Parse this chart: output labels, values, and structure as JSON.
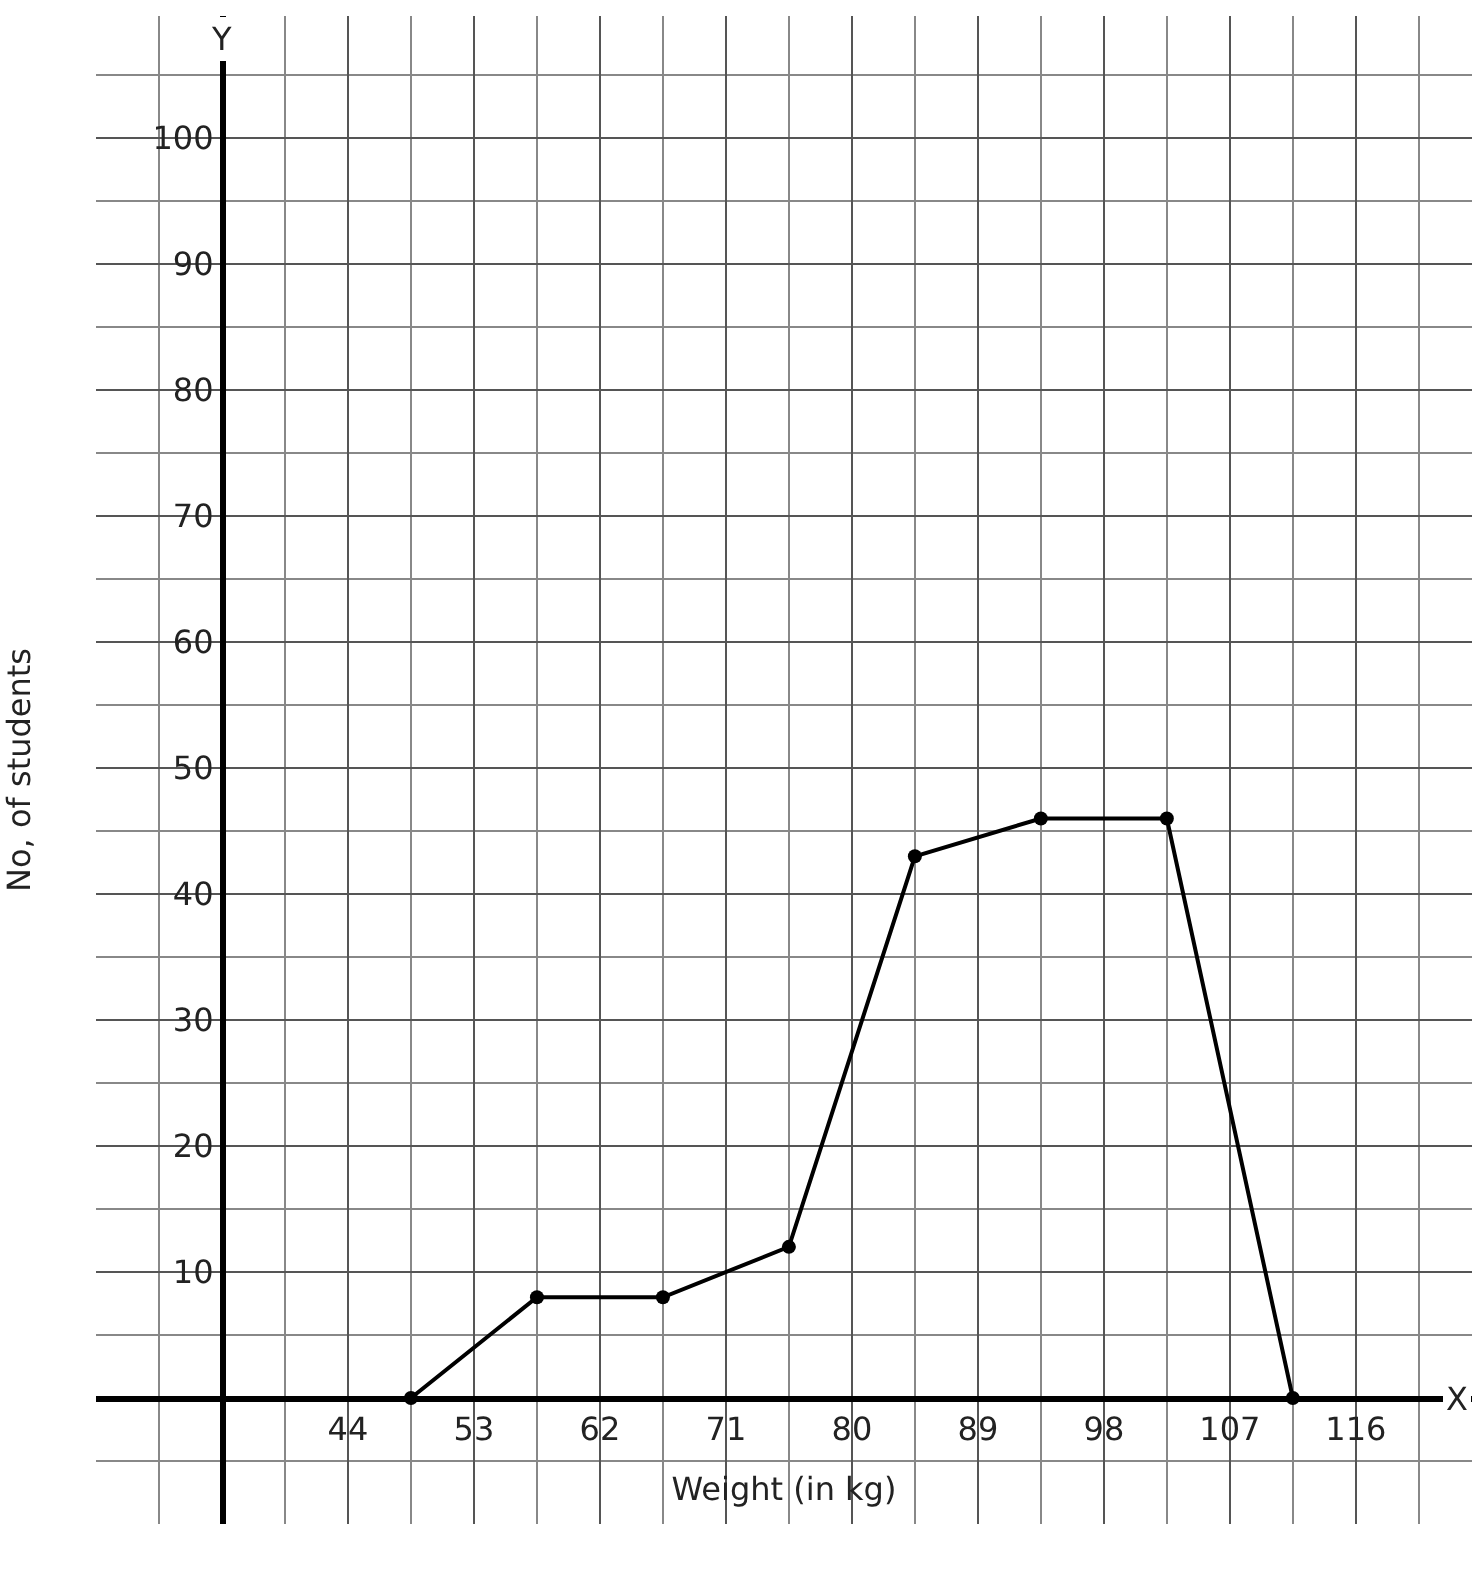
{
  "chart_data": {
    "type": "line",
    "xlabel": "Weight (in kg)",
    "ylabel": "No, of students",
    "annotations": [
      "X",
      "Y"
    ],
    "x": [
      48.5,
      57.5,
      66.5,
      75.5,
      84.5,
      93.5,
      102.5,
      111.5
    ],
    "series": [
      {
        "color": "#000000",
        "values": [
          0,
          8,
          8,
          12,
          43,
          46,
          46,
          0
        ]
      }
    ],
    "xlim": [
      26,
      124.3
    ],
    "ylim": [
      -10,
      109.7
    ],
    "xticks": [
      44,
      53,
      62,
      71,
      80,
      89,
      98,
      107,
      116
    ],
    "yticks": [
      10,
      20,
      30,
      40,
      50,
      60,
      70,
      80,
      90,
      100
    ],
    "grid": true,
    "marker": "circle",
    "line_style": "solid"
  }
}
